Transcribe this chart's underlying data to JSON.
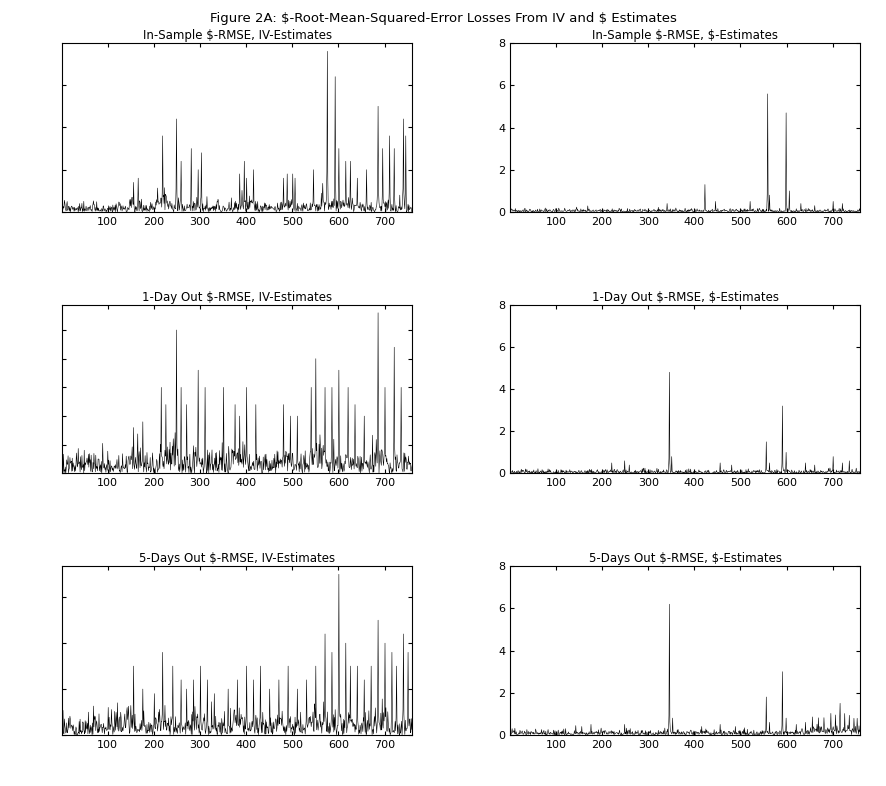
{
  "suptitle": "Figure 2A: $-Root-Mean-Squared-Error Losses From IV and $ Estimates",
  "titles": [
    "In-Sample $-RMSE, IV-Estimates",
    "In-Sample $-RMSE, $-Estimates",
    "1-Day Out $-RMSE, IV-Estimates",
    "1-Day Out $-RMSE, $-Estimates",
    "5-Days Out $-RMSE, IV-Estimates",
    "5-Days Out $-RMSE, $-Estimates"
  ],
  "n_points": 760,
  "xlim": [
    1,
    760
  ],
  "xticks": [
    100,
    200,
    300,
    400,
    500,
    600,
    700
  ],
  "right_ylim": [
    0,
    8
  ],
  "right_yticks": [
    0,
    2,
    4,
    6,
    8
  ],
  "line_color": "#000000",
  "bg_color": "#ffffff",
  "seed": 42
}
